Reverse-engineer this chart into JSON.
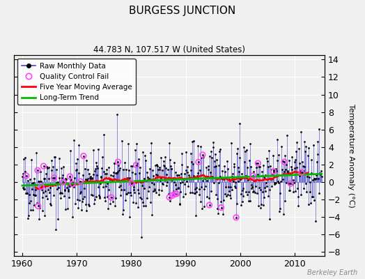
{
  "title": "BURGESS JUNCTION",
  "subtitle": "44.783 N, 107.517 W (United States)",
  "ylabel": "Temperature Anomaly (°C)",
  "watermark": "Berkeley Earth",
  "ylim": [
    -8.5,
    14.5
  ],
  "yticks": [
    -8,
    -6,
    -4,
    -2,
    0,
    2,
    4,
    6,
    8,
    10,
    12,
    14
  ],
  "xlim": [
    1958.5,
    2015.5
  ],
  "xticks": [
    1960,
    1970,
    1980,
    1990,
    2000,
    2010
  ],
  "line_color": "#4444cc",
  "marker_color": "#000000",
  "qc_fail_color": "#ff44ff",
  "moving_avg_color": "#ff0000",
  "trend_color": "#00bb00",
  "background_color": "#f0f0f0",
  "grid_color": "#ffffff",
  "seed": 42
}
